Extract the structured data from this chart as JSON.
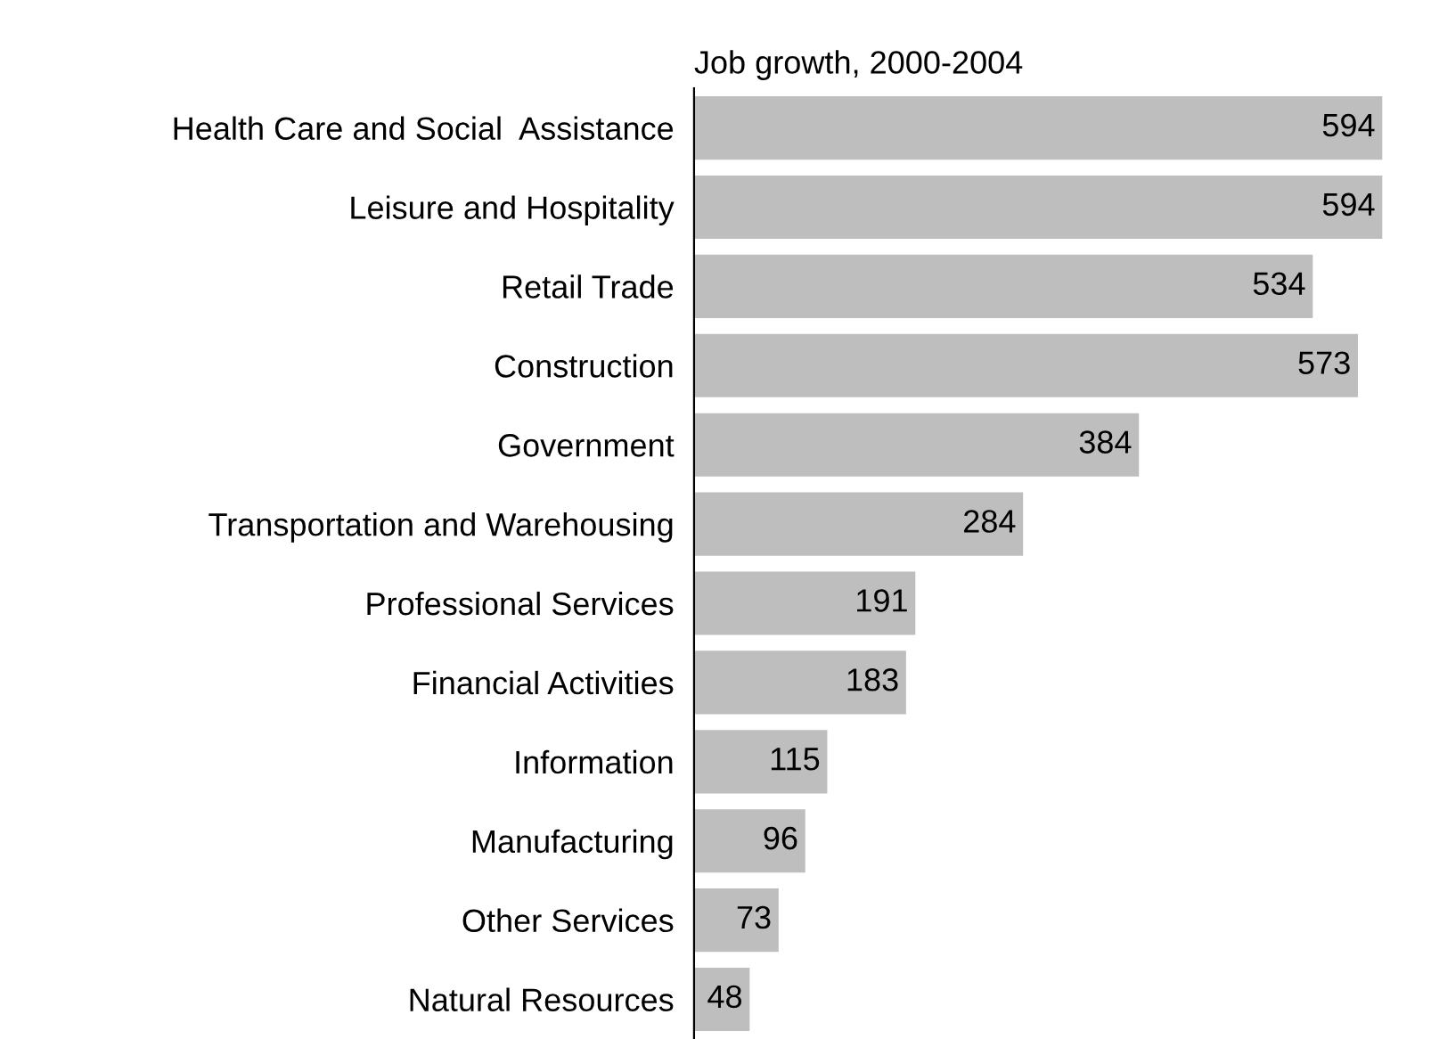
{
  "chart_data": {
    "type": "bar",
    "orientation": "horizontal",
    "title": "Job growth, 2000-2004",
    "categories": [
      "Health Care and Social  Assistance",
      "Leisure and Hospitality",
      "Retail Trade",
      "Construction",
      "Government",
      "Transportation and Warehousing",
      "Professional Services",
      "Financial Activities",
      "Information",
      "Manufacturing",
      "Other Services",
      "Natural Resources"
    ],
    "values": [
      594,
      594,
      534,
      573,
      384,
      284,
      191,
      183,
      115,
      96,
      73,
      48
    ],
    "color": "#bebebe",
    "data_labels": true,
    "grid": false,
    "legend": false
  }
}
